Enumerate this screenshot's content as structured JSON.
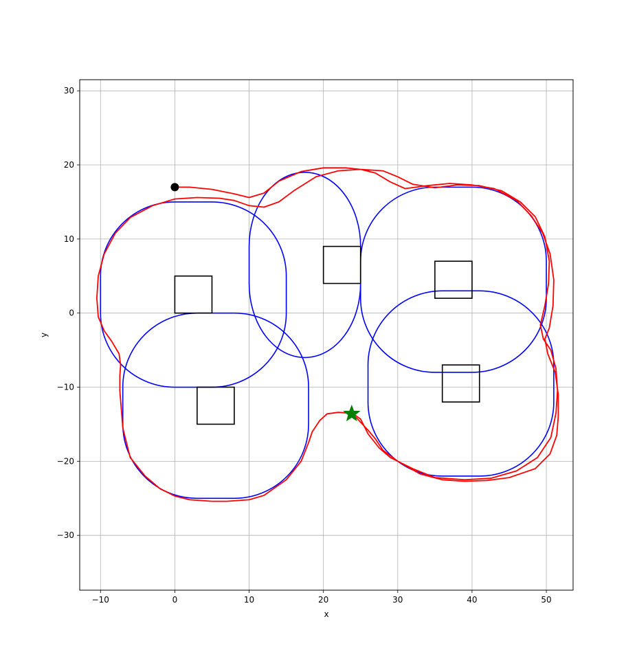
{
  "chart_data": {
    "type": "line",
    "title": "",
    "xlabel": "x",
    "ylabel": "y",
    "xlim": [
      -12.8,
      53.6
    ],
    "ylim": [
      -37.4,
      31.5
    ],
    "grid": true,
    "xticks": [
      -10,
      0,
      10,
      20,
      30,
      40,
      50
    ],
    "yticks": [
      -30,
      -20,
      -10,
      0,
      10,
      20,
      30
    ],
    "xtick_labels": [
      "−10",
      "0",
      "10",
      "20",
      "30",
      "40",
      "50"
    ],
    "ytick_labels": [
      "−30",
      "−20",
      "−10",
      "0",
      "10",
      "20",
      "30"
    ],
    "colors": {
      "boundary": "#0000ff",
      "trajectory": "#ff0000",
      "obstacle": "#000000",
      "start": "#000000",
      "goal": "#008000",
      "grid": "#b0b0b0"
    },
    "obstacles": [
      {
        "x": 0,
        "y": 0,
        "w": 5,
        "h": 5
      },
      {
        "x": 3,
        "y": -15,
        "w": 5,
        "h": 5
      },
      {
        "x": 20,
        "y": 4,
        "w": 5,
        "h": 5
      },
      {
        "x": 35,
        "y": 2,
        "w": 5,
        "h": 5
      },
      {
        "x": 36,
        "y": -12,
        "w": 5,
        "h": 5
      }
    ],
    "boundaries": [
      {
        "x0": -10,
        "y0": -10,
        "x1": 15,
        "y1": 15,
        "r": 10
      },
      {
        "x0": -7,
        "y0": -25,
        "x1": 18,
        "y1": 0,
        "r": 10
      },
      {
        "x0": 10,
        "y0": -6,
        "x1": 25,
        "y1": 19,
        "r": 10
      },
      {
        "x0": 25,
        "y0": -8,
        "x1": 50,
        "y1": 17,
        "r": 10
      },
      {
        "x0": 26,
        "y0": -22,
        "x1": 51,
        "y1": 3,
        "r": 10
      }
    ],
    "series": [
      {
        "x": [
          0,
          2,
          5,
          8,
          10,
          12,
          14,
          17,
          20,
          23,
          25,
          27,
          29,
          31,
          34,
          37,
          40,
          43,
          46,
          48,
          49.5,
          50.5,
          51,
          50.9,
          50.4,
          49.8,
          50.2,
          51.2,
          51.6,
          51.6,
          51.4,
          50.5,
          48.5,
          45,
          42,
          39,
          36,
          33,
          30,
          28,
          27,
          26,
          24.5,
          23.5,
          22,
          20.5,
          19.5,
          18.5,
          18,
          17,
          15,
          12,
          10,
          7,
          5,
          2,
          0,
          -2,
          -4,
          -6,
          -7,
          -7.2,
          -7.4,
          -7.4,
          -7.3,
          -7.5,
          -8.5,
          -9.5,
          -10.3,
          -10.5,
          -10.3,
          -9.5,
          -8,
          -6,
          -3,
          0,
          3,
          6,
          8,
          10,
          12,
          14,
          16,
          19,
          22,
          25,
          28,
          30,
          32,
          35,
          38,
          41,
          44,
          46.5,
          48.5,
          49.8,
          50.4,
          50.3,
          49.8,
          49.2,
          49.6,
          50.6,
          51.3,
          51.5,
          51.3,
          50.6,
          48.8,
          46,
          42.5,
          39,
          35,
          32,
          29,
          27.5,
          26,
          25,
          24,
          23.5
        ],
        "y": [
          17,
          17,
          16.7,
          16.1,
          15.6,
          16.2,
          17.8,
          19.1,
          19.6,
          19.6,
          19.4,
          18.9,
          17.7,
          16.8,
          17.2,
          17.5,
          17.3,
          16.8,
          15.2,
          13.1,
          10.8,
          8,
          4.5,
          1,
          -2,
          -3.5,
          -5.5,
          -8,
          -11,
          -14,
          -16.5,
          -19,
          -21,
          -22.2,
          -22.6,
          -22.7,
          -22.5,
          -21.7,
          -20,
          -18.5,
          -17,
          -15.8,
          -14.2,
          -13.5,
          -13.4,
          -13.6,
          -14.5,
          -16,
          -17.5,
          -20,
          -22.5,
          -24.6,
          -25.2,
          -25.4,
          -25.4,
          -25.2,
          -24.7,
          -23.7,
          -22,
          -19.5,
          -15.5,
          -13,
          -10.5,
          -8.5,
          -7,
          -5.5,
          -3.8,
          -2.4,
          -0.5,
          2,
          5,
          8,
          10.8,
          12.9,
          14.5,
          15.4,
          15.6,
          15.5,
          15.2,
          14.5,
          14.3,
          15,
          16.5,
          18.4,
          19.2,
          19.4,
          19.2,
          18.4,
          17.4,
          16.9,
          17.3,
          17.2,
          16.5,
          15,
          13,
          10.3,
          7,
          4,
          1,
          -1.6,
          -3.5,
          -5,
          -7.5,
          -10.5,
          -13.5,
          -16.8,
          -19.5,
          -21.3,
          -22.3,
          -22.5,
          -22.2,
          -21,
          -19.5,
          -18.2,
          -16.3,
          -14.3,
          -13.6,
          -13.5
        ]
      }
    ],
    "start": {
      "x": 0,
      "y": 17
    },
    "goal": {
      "x": 23.8,
      "y": -13.6
    }
  }
}
